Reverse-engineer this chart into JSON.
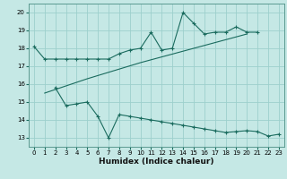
{
  "xlabel": "Humidex (Indice chaleur)",
  "bg_color": "#c5e8e5",
  "line_color": "#1a6b5e",
  "grid_color": "#9dd0cc",
  "xlim": [
    -0.5,
    23.5
  ],
  "ylim": [
    12.5,
    20.5
  ],
  "yticks": [
    13,
    14,
    15,
    16,
    17,
    18,
    19,
    20
  ],
  "xticks": [
    0,
    1,
    2,
    3,
    4,
    5,
    6,
    7,
    8,
    9,
    10,
    11,
    12,
    13,
    14,
    15,
    16,
    17,
    18,
    19,
    20,
    21,
    22,
    23
  ],
  "line1_x": [
    0,
    1,
    2,
    3,
    4,
    5,
    6,
    7,
    8,
    9,
    10,
    11,
    12,
    13,
    14,
    15,
    16,
    17,
    18,
    19,
    20,
    21
  ],
  "line1_y": [
    18.1,
    17.4,
    17.4,
    17.4,
    17.4,
    17.4,
    17.4,
    17.4,
    17.7,
    17.9,
    18.0,
    18.9,
    17.9,
    18.0,
    20.0,
    19.4,
    18.8,
    18.9,
    18.9,
    19.2,
    18.9,
    18.9
  ],
  "line2_x": [
    1,
    5,
    10,
    15,
    20
  ],
  "line2_y": [
    15.5,
    16.3,
    17.2,
    18.0,
    18.8
  ],
  "line3_x": [
    2,
    3,
    4,
    5,
    6,
    7,
    8,
    9,
    10,
    11,
    12,
    13,
    14,
    15,
    16,
    17,
    18,
    19,
    20,
    21,
    22,
    23
  ],
  "line3_y": [
    15.8,
    14.8,
    14.9,
    15.0,
    14.2,
    13.0,
    14.3,
    14.2,
    14.1,
    14.0,
    13.9,
    13.8,
    13.7,
    13.6,
    13.5,
    13.4,
    13.3,
    13.35,
    13.4,
    13.35,
    13.1,
    13.2
  ],
  "figsize": [
    3.2,
    2.0
  ],
  "dpi": 100
}
